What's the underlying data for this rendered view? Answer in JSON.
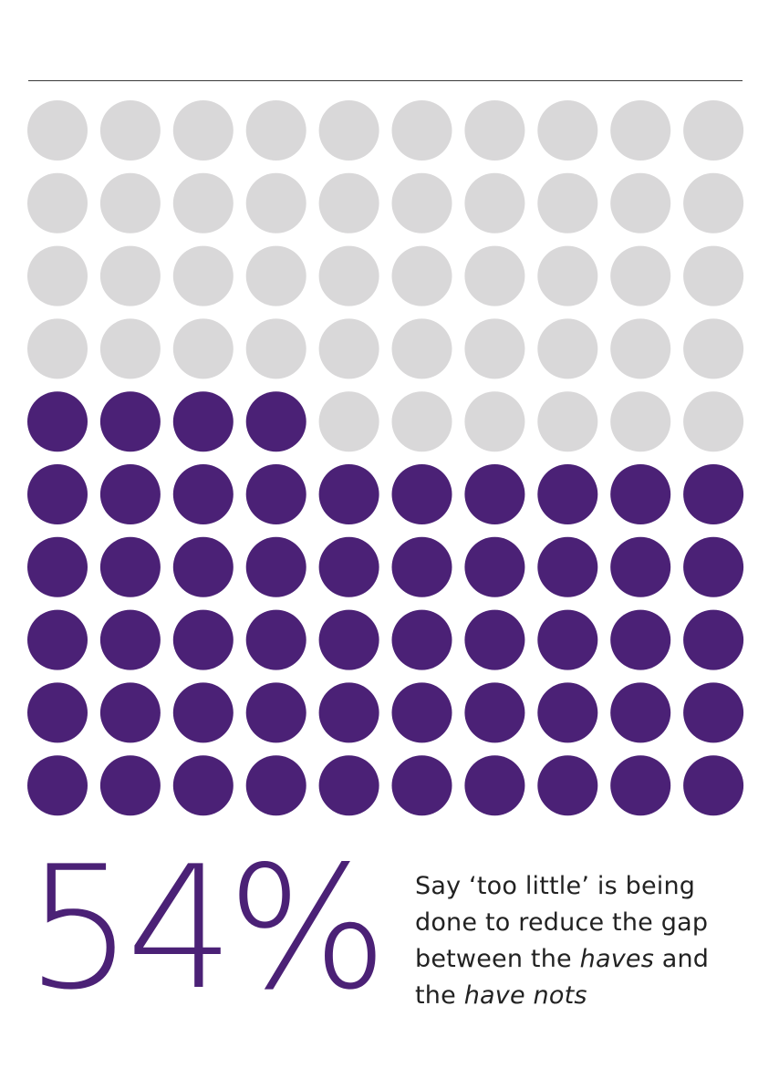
{
  "chart_data": {
    "type": "waffle",
    "total": 100,
    "rows": 10,
    "columns": 10,
    "highlighted_count": 54,
    "fill_order": "bottom-up, left-to-right",
    "colors": {
      "highlight": "#4b2176",
      "base": "#d9d8d9"
    }
  },
  "stat": {
    "value": "54%"
  },
  "caption": {
    "line1": "Say ‘too little’ is being",
    "line2": "done to reduce the gap",
    "line3_pre": "between the ",
    "line3_italic": "haves",
    "line3_post": " and",
    "line4_pre": "the ",
    "line4_italic": "have nots"
  }
}
